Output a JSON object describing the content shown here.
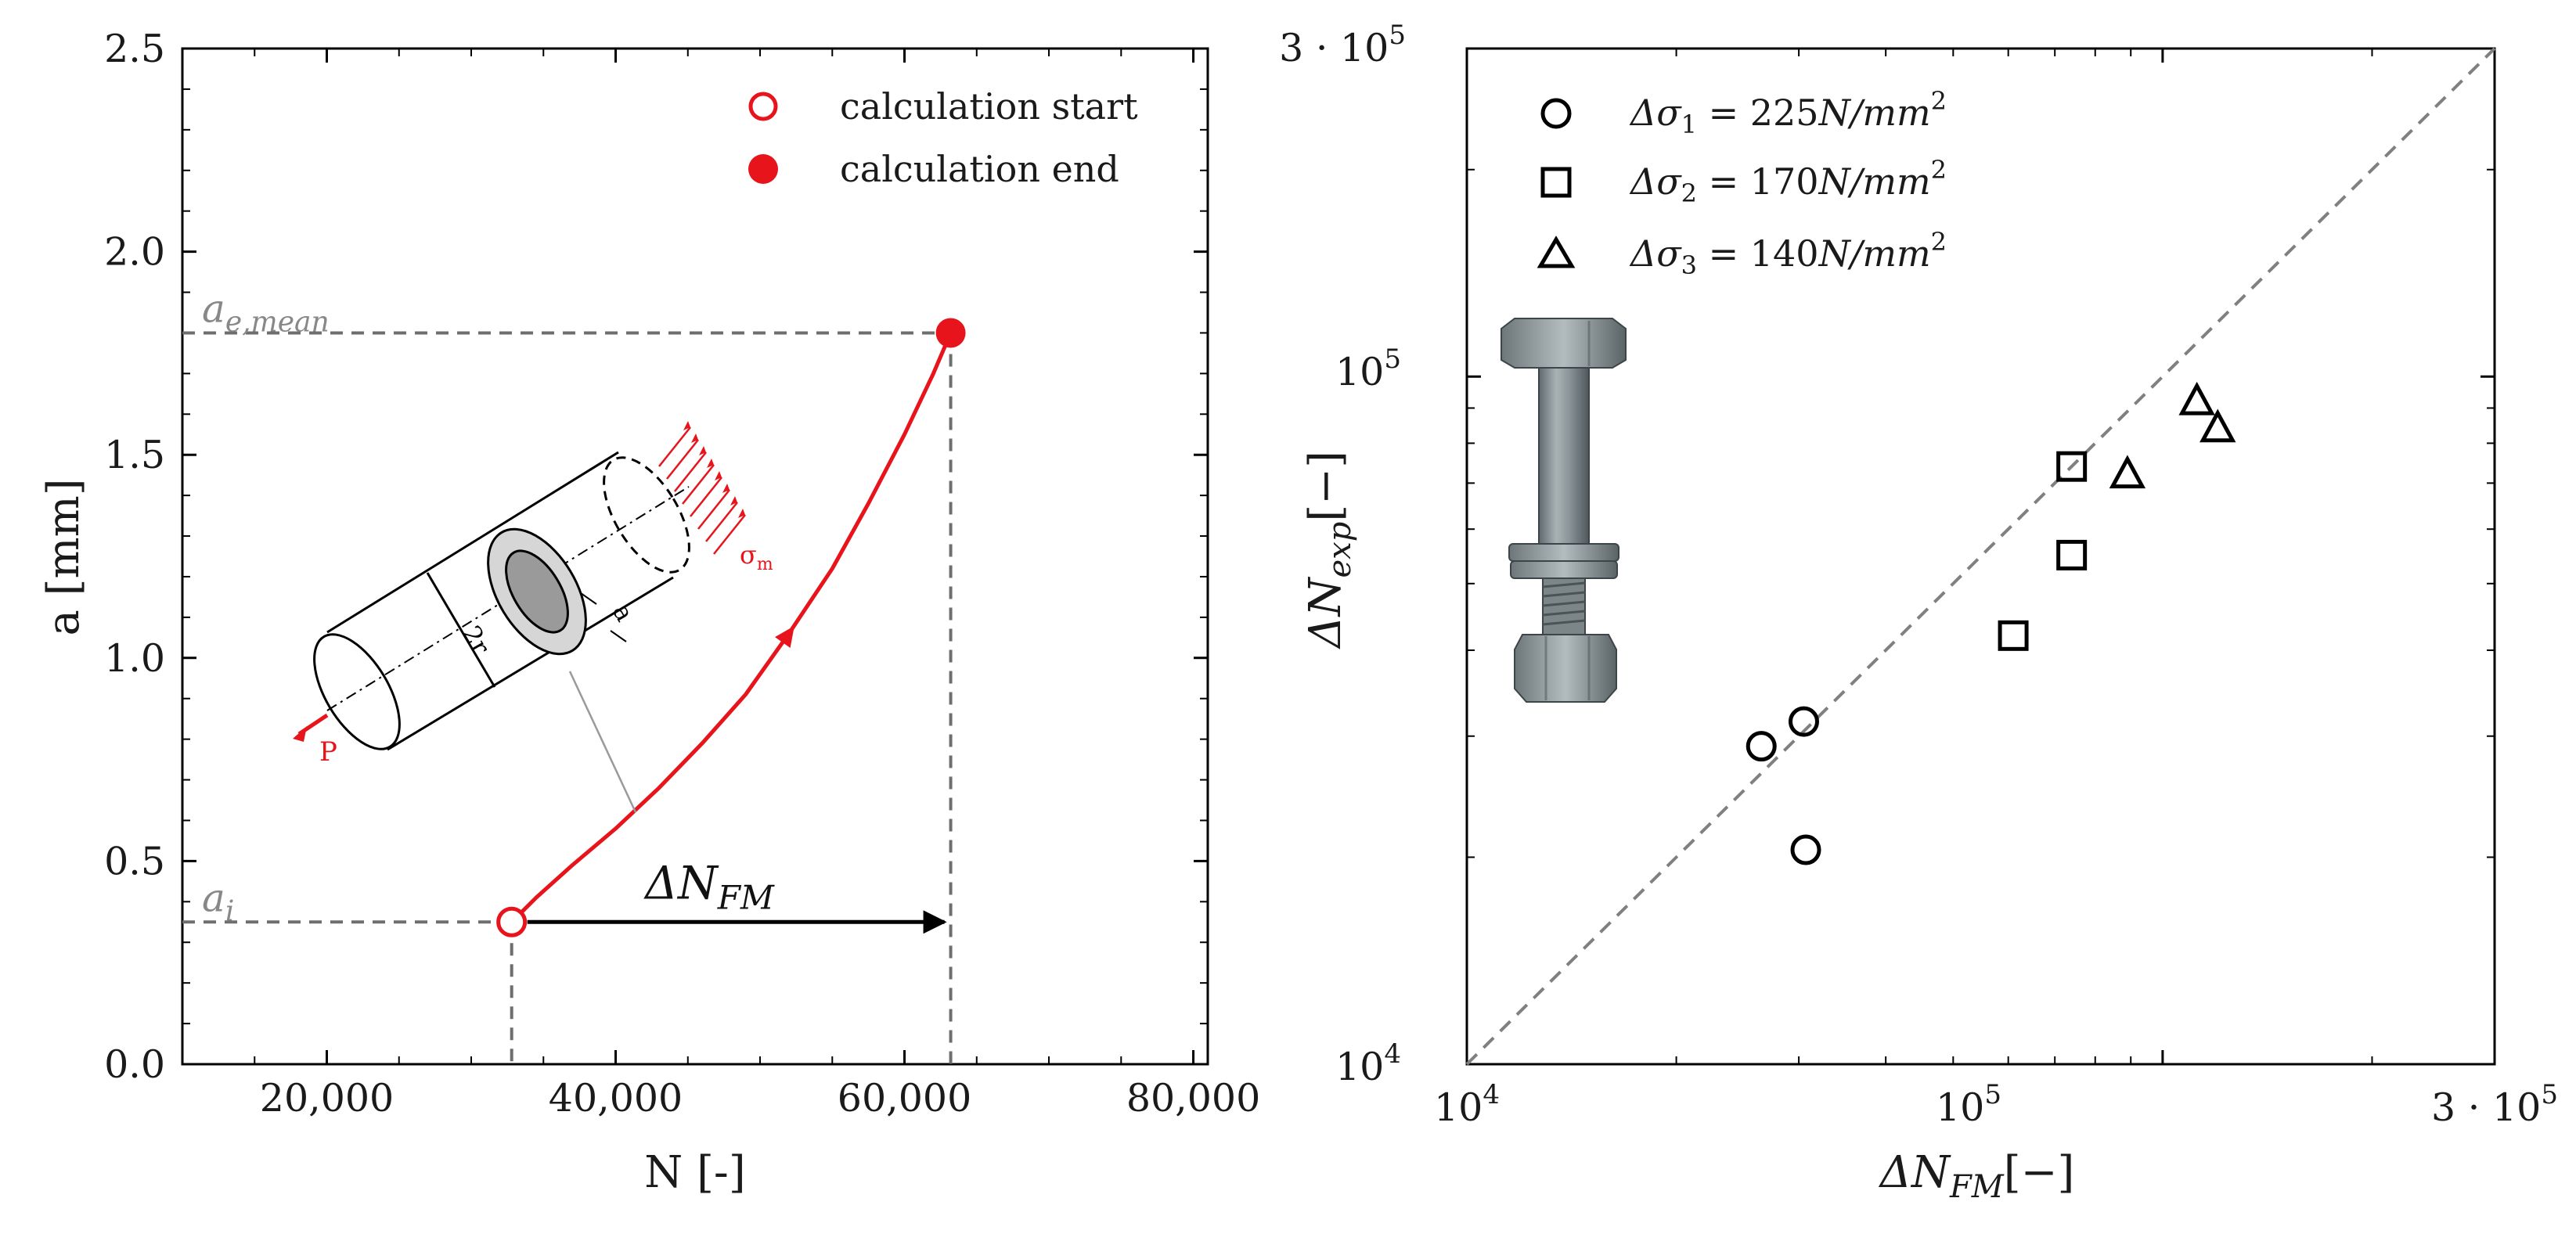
{
  "chart_data": [
    {
      "type": "line",
      "xlabel": "N [-]",
      "ylabel": "a [mm]",
      "xlim": [
        10000,
        81000
      ],
      "ylim": [
        0,
        2.5
      ],
      "xticks": [
        20000,
        40000,
        60000,
        80000
      ],
      "xtick_labels": [
        "20,000",
        "40,000",
        "60,000",
        "80,000"
      ],
      "yticks": [
        0,
        0.5,
        1.0,
        1.5,
        2.0,
        2.5
      ],
      "ytick_labels": [
        "0.0",
        "0.5",
        "1.0",
        "1.5",
        "2.0",
        "2.5"
      ],
      "series": [
        {
          "color": "#e8141c",
          "x": [
            32800,
            34500,
            37000,
            40000,
            43000,
            46000,
            49000,
            52000,
            55000,
            57500,
            60000,
            62000,
            63200
          ],
          "y": [
            0.35,
            0.41,
            0.49,
            0.58,
            0.68,
            0.79,
            0.91,
            1.06,
            1.22,
            1.38,
            1.55,
            1.7,
            1.8
          ]
        }
      ],
      "points": [
        {
          "x": 32800,
          "y": 0.35,
          "style": "open-circle"
        },
        {
          "x": 63200,
          "y": 1.8,
          "style": "filled-circle"
        }
      ],
      "legend": {
        "placement": "top-right",
        "entries": [
          {
            "label": "calculation start",
            "marker": "open-circle"
          },
          {
            "label": "calculation end",
            "marker": "filled-circle"
          }
        ]
      },
      "annotations": {
        "a_e_mean": {
          "base": "a",
          "sub": "e,mean",
          "y": 1.8
        },
        "a_i": {
          "base": "a",
          "sub": "i",
          "y": 0.35
        },
        "delta_n_fm": {
          "base": "ΔN",
          "sub": "FM"
        },
        "inset_2r": "2r",
        "inset_a": "a",
        "inset_sigma": {
          "base": "σ",
          "sub": "m"
        },
        "inset_p": "P"
      }
    },
    {
      "type": "scatter",
      "xscale": "log",
      "yscale": "log",
      "xlim": [
        10000,
        300000
      ],
      "ylim": [
        10000,
        300000
      ],
      "xlabel": {
        "base": "ΔN",
        "sub": "FM",
        "tail": "[−]"
      },
      "ylabel": {
        "base": "ΔN",
        "sub": "exp",
        "tail": "[−]"
      },
      "xtick_labels": [
        {
          "base": "10",
          "sup": "4",
          "value": 10000
        },
        {
          "base": "10",
          "sup": "5",
          "value": 100000
        },
        {
          "base": "3 · 10",
          "sup": "5",
          "value": 300000
        }
      ],
      "ytick_labels": [
        {
          "base": "10",
          "sup": "4",
          "value": 10000
        },
        {
          "base": "10",
          "sup": "5",
          "value": 100000
        },
        {
          "base": "3 · 10",
          "sup": "5",
          "value": 300000
        }
      ],
      "reference_line": {
        "style": "dashed",
        "color": "#808080",
        "x": [
          10000,
          300000
        ],
        "y": [
          10000,
          300000
        ]
      },
      "series": [
        {
          "marker": "circle",
          "x": [
            26500,
            30500,
            30700
          ],
          "y": [
            29000,
            31500,
            20500
          ]
        },
        {
          "marker": "square",
          "x": [
            61000,
            74000,
            74000
          ],
          "y": [
            42000,
            74000,
            55000
          ]
        },
        {
          "marker": "triangle",
          "x": [
            89000,
            112000,
            120000
          ],
          "y": [
            72000,
            92000,
            84000
          ]
        }
      ],
      "legend": {
        "placement": "top-left",
        "entries": [
          {
            "marker": "circle",
            "sym": "Δσ",
            "sub": "1",
            "rest": " = 225",
            "unit": "N/mm",
            "sup": "2"
          },
          {
            "marker": "square",
            "sym": "Δσ",
            "sub": "2",
            "rest": " = 170",
            "unit": "N/mm",
            "sup": "2"
          },
          {
            "marker": "triangle",
            "sym": "Δσ",
            "sub": "3",
            "rest": " = 140",
            "unit": "N/mm",
            "sup": "2"
          }
        ]
      }
    }
  ]
}
